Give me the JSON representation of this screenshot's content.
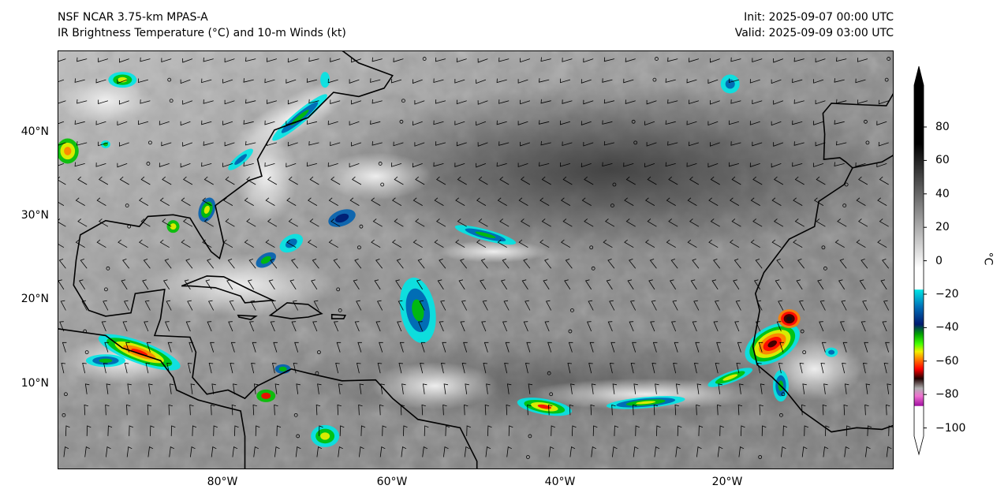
{
  "header": {
    "model": "NSF NCAR 3.75-km MPAS-A",
    "field": "IR Brightness Temperature (°C) and 10-m Winds (kt)",
    "init": "Init: 2025-09-07 00:00 UTC",
    "valid": "Valid: 2025-09-09 03:00 UTC"
  },
  "axes": {
    "lat_labels": [
      "40°N",
      "30°N",
      "20°N",
      "10°N"
    ],
    "lon_labels": [
      "80°W",
      "60°W",
      "40°W",
      "20°W"
    ]
  },
  "colorbar": {
    "unit": "°C",
    "ticks": [
      "80",
      "60",
      "40",
      "20",
      "0",
      "−20",
      "−40",
      "−60",
      "−80",
      "−100"
    ],
    "colors": {
      "cyan": "#00e5e5",
      "blue": "#0060b0",
      "navy": "#001a70",
      "green": "#00c000",
      "lime": "#40ff00",
      "yellow": "#f0f000",
      "orange": "#ff8000",
      "red": "#ff0000",
      "darkred": "#300000",
      "gray": "#a0a0a0",
      "pink": "#f070d0",
      "purple": "#a010a0"
    }
  }
}
